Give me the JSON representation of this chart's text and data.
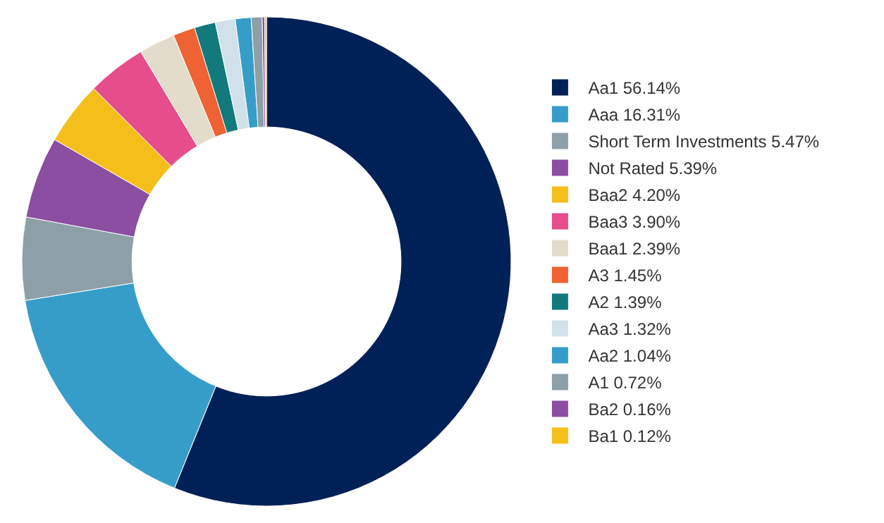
{
  "chart_data": {
    "type": "donut",
    "legend": "right",
    "categories": [
      "Aa1",
      "Aaa",
      "Short Term Investments",
      "Not Rated",
      "Baa2",
      "Baa3",
      "Baa1",
      "A3",
      "A2",
      "Aa3",
      "Aa2",
      "A1",
      "Ba2",
      "Ba1"
    ],
    "values": [
      56.14,
      16.31,
      5.47,
      5.39,
      4.2,
      3.9,
      2.39,
      1.45,
      1.39,
      1.32,
      1.04,
      0.72,
      0.16,
      0.12
    ],
    "value_labels": [
      "56.14%",
      "16.31%",
      "5.47%",
      "5.39%",
      "4.20%",
      "3.90%",
      "2.39%",
      "1.45%",
      "1.39%",
      "1.32%",
      "1.04%",
      "0.72%",
      "0.16%",
      "0.12%"
    ],
    "colors": [
      "#002157",
      "#369dc9",
      "#8da0a8",
      "#8b4ea0",
      "#f5bf1b",
      "#e64d8b",
      "#e3dccb",
      "#ef6234",
      "#127a7c",
      "#d0e1ea",
      "#369dc9",
      "#8da0a8",
      "#8b4ea0",
      "#f5bf1b"
    ]
  }
}
